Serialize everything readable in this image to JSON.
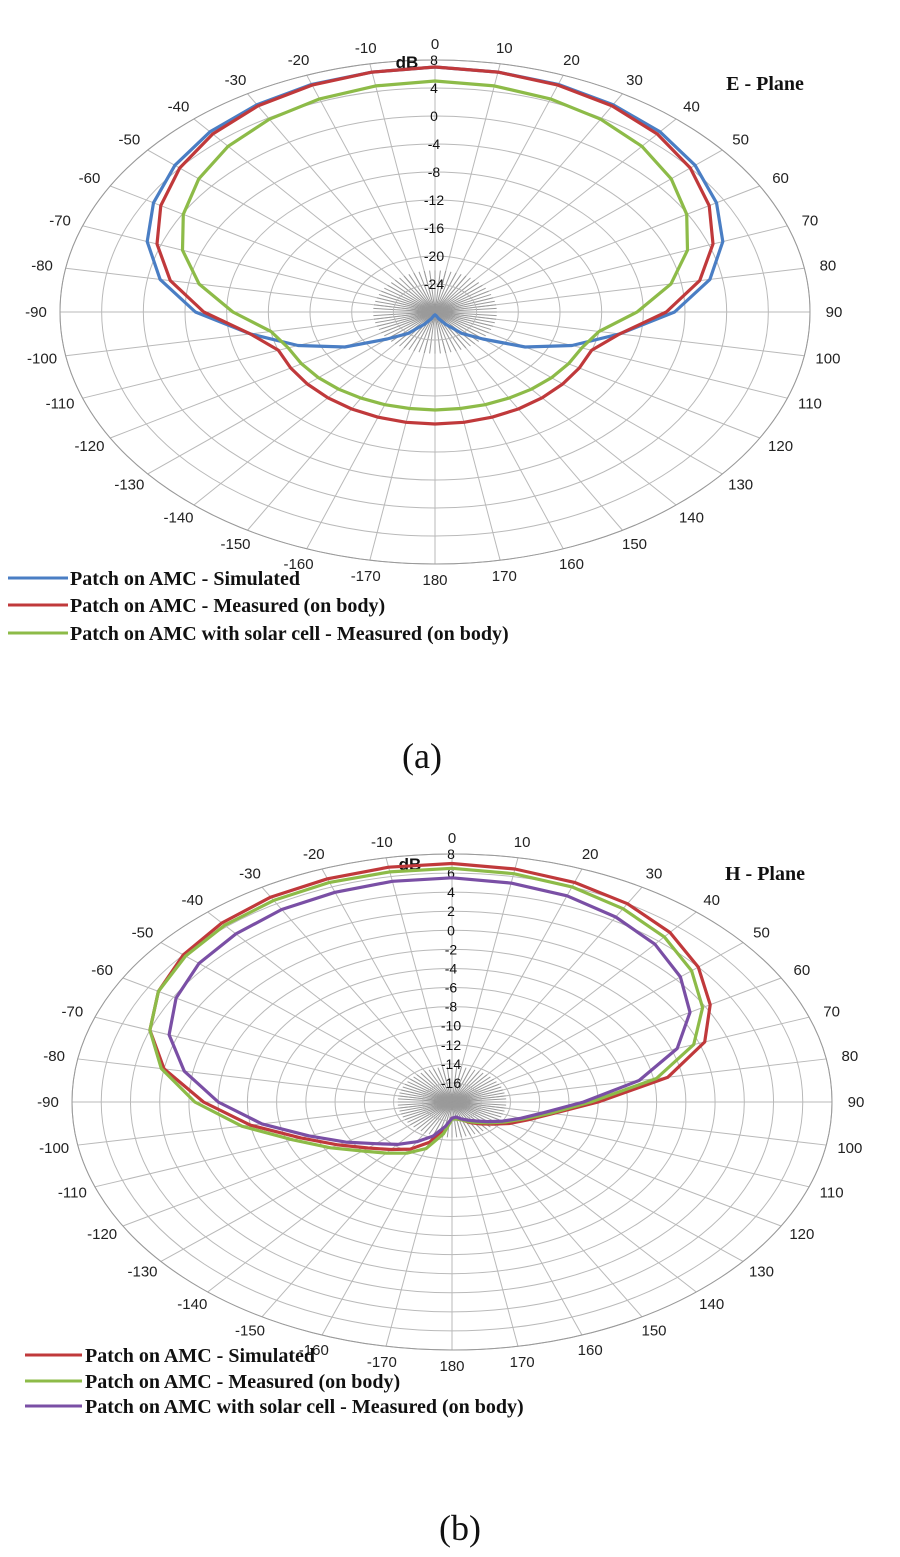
{
  "chart_data": [
    {
      "type": "polar",
      "title": "E - Plane",
      "radial_label": "dB",
      "caption": "(a)",
      "r_ticks": [
        8,
        4,
        0,
        -4,
        -8,
        -12,
        -16,
        -20,
        -24
      ],
      "r_range": [
        -28,
        8
      ],
      "angle_step_deg": 10,
      "angle_labels": [
        "0",
        "10",
        "20",
        "30",
        "40",
        "50",
        "60",
        "70",
        "80",
        "90",
        "100",
        "110",
        "120",
        "130",
        "140",
        "150",
        "160",
        "170",
        "180",
        "-170",
        "-160",
        "-150",
        "-140",
        "-130",
        "-120",
        "-110",
        "-100",
        "-90",
        "-80",
        "-70",
        "-60",
        "-50",
        "-40",
        "-30",
        "-20",
        "-10"
      ],
      "theta": [
        0,
        10,
        20,
        30,
        40,
        50,
        60,
        70,
        80,
        90,
        100,
        110,
        120,
        130,
        140,
        150,
        160,
        170,
        180,
        -170,
        -160,
        -150,
        -140,
        -130,
        -120,
        -110,
        -100,
        -90,
        -80,
        -70,
        -60,
        -50,
        -40,
        -30,
        -20,
        -10
      ],
      "legend_position": "bottom",
      "series": [
        {
          "name": "Patch on AMC - Simulated",
          "color": "#4a7ec4",
          "values": [
            7,
            6.8,
            6.6,
            6.2,
            5.6,
            4.6,
            3.2,
            1.4,
            -1.2,
            -5,
            -10,
            -14,
            -18,
            -22,
            -24,
            -26,
            -27,
            -27.5,
            -27.6,
            -27.5,
            -27,
            -26,
            -24,
            -22,
            -18,
            -14,
            -10,
            -5,
            -1.2,
            1.4,
            3.2,
            4.6,
            5.6,
            6.2,
            6.6,
            6.8
          ]
        },
        {
          "name": "Patch on AMC - Measured (on body)",
          "color": "#c0393b",
          "values": [
            7,
            6.8,
            6.5,
            6,
            5.2,
            4,
            2.4,
            0.4,
            -2.2,
            -5.8,
            -10,
            -12,
            -12,
            -12,
            -12,
            -12,
            -12,
            -12,
            -12,
            -12,
            -12,
            -12,
            -12,
            -12,
            -12,
            -12,
            -10,
            -5.8,
            -2.2,
            0.4,
            2.4,
            4,
            5.2,
            6,
            6.5,
            6.8
          ]
        },
        {
          "name": "Patch on AMC with solar cell - Measured (on body)",
          "color": "#8dbb48",
          "values": [
            5,
            4.8,
            4.4,
            3.8,
            2.9,
            1.6,
            -0.1,
            -2.2,
            -5,
            -8.6,
            -12,
            -13,
            -13.2,
            -13.4,
            -13.6,
            -13.8,
            -13.9,
            -14,
            -14,
            -14,
            -13.9,
            -13.8,
            -13.6,
            -13.4,
            -13.2,
            -13,
            -12,
            -8.6,
            -5,
            -2.2,
            -0.1,
            1.6,
            2.9,
            3.8,
            4.4,
            4.8
          ]
        }
      ]
    },
    {
      "type": "polar",
      "title": "H - Plane",
      "radial_label": "dB",
      "caption": "(b)",
      "r_ticks": [
        8,
        6,
        4,
        2,
        0,
        -2,
        -4,
        -6,
        -8,
        -10,
        -12,
        -14,
        -16
      ],
      "r_range": [
        -18,
        8
      ],
      "angle_step_deg": 10,
      "angle_labels": [
        "0",
        "10",
        "20",
        "30",
        "40",
        "50",
        "60",
        "70",
        "80",
        "90",
        "100",
        "110",
        "120",
        "130",
        "140",
        "150",
        "160",
        "170",
        "180",
        "-170",
        "-160",
        "-150",
        "-140",
        "-130",
        "-120",
        "-110",
        "-100",
        "-90",
        "-80",
        "-70",
        "-60",
        "-50",
        "-40",
        "-30",
        "-20",
        "-10"
      ],
      "theta": [
        0,
        10,
        20,
        30,
        40,
        50,
        60,
        70,
        80,
        90,
        100,
        110,
        120,
        130,
        140,
        150,
        160,
        170,
        180,
        -170,
        -160,
        -150,
        -140,
        -130,
        -120,
        -110,
        -100,
        -90,
        -80,
        -70,
        -60,
        -50,
        -40,
        -30,
        -20,
        -10
      ],
      "legend_position": "bottom",
      "series": [
        {
          "name": "Patch on AMC - Simulated",
          "color": "#c0393b",
          "values": [
            7,
            6.8,
            6.5,
            6,
            5.2,
            4,
            2.4,
            0.4,
            -3,
            -8,
            -11,
            -12.5,
            -13.5,
            -14.4,
            -15,
            -15.5,
            -16,
            -16.2,
            -16.3,
            -15.2,
            -13.5,
            -12.3,
            -11.5,
            -10.5,
            -9,
            -7,
            -4,
            -1,
            2,
            4,
            5.2,
            6,
            6.5,
            6.8,
            6.9,
            7
          ]
        },
        {
          "name": "Patch on AMC - Measured (on body)",
          "color": "#8dbb48",
          "values": [
            6.5,
            6.3,
            6,
            5.4,
            4.6,
            3.4,
            1.8,
            -0.4,
            -3.8,
            -8.5,
            -11.2,
            -12.8,
            -13.8,
            -14.6,
            -15.2,
            -15.6,
            -16,
            -16.2,
            -16.2,
            -14.6,
            -12.8,
            -11.8,
            -11,
            -10,
            -8.4,
            -6.4,
            -3.4,
            -0.4,
            2.2,
            4,
            5.2,
            5.8,
            6.2,
            6.4,
            6.5,
            6.5
          ]
        },
        {
          "name": "Patch on AMC with solar cell - Measured (on body)",
          "color": "#7a4fa5",
          "values": [
            5.5,
            5.3,
            5,
            4.4,
            3.6,
            2.4,
            0.8,
            -1.6,
            -5,
            -9,
            -11.6,
            -13,
            -14,
            -14.8,
            -15.4,
            -15.8,
            -16.1,
            -16.4,
            -16.3,
            -15.4,
            -14.2,
            -13.2,
            -12.2,
            -11.2,
            -9.6,
            -7.6,
            -4.8,
            -2,
            0.6,
            2.6,
            3.8,
            4.6,
            5,
            5.3,
            5.4,
            5.5
          ]
        }
      ]
    }
  ]
}
